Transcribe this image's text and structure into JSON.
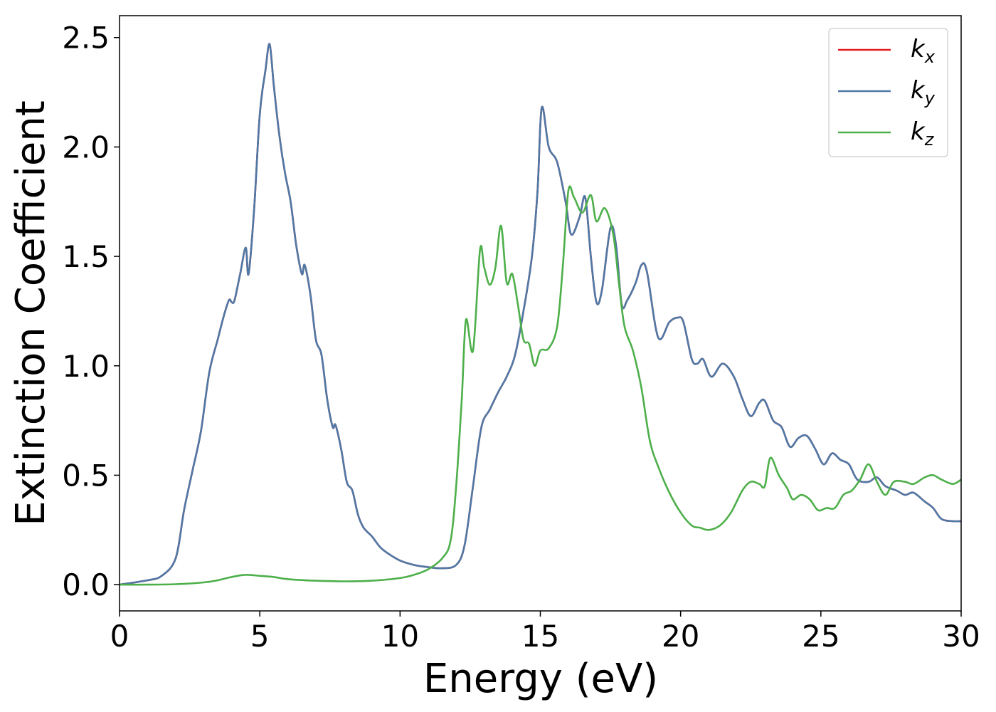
{
  "chart_data": {
    "type": "line",
    "xlabel": "Energy (eV)",
    "ylabel": "Extinction Coefficient",
    "xlim": [
      0,
      30
    ],
    "ylim": [
      -0.12,
      2.6
    ],
    "xticks": [
      0,
      5,
      10,
      15,
      20,
      25,
      30
    ],
    "xtick_labels": [
      "0",
      "5",
      "10",
      "15",
      "20",
      "25",
      "30"
    ],
    "yticks": [
      0.0,
      0.5,
      1.0,
      1.5,
      2.0,
      2.5
    ],
    "ytick_labels": [
      "0.0",
      "0.5",
      "1.0",
      "1.5",
      "2.0",
      "2.5"
    ],
    "grid": false,
    "legend_position": "top-right",
    "series": [
      {
        "name": "k",
        "subscript": "x",
        "color": "#e41a1c",
        "x": [
          0,
          1,
          1.5,
          2,
          2.3,
          2.6,
          2.9,
          3.2,
          3.5,
          3.7,
          3.9,
          4.0,
          4.1,
          4.3,
          4.5,
          4.6,
          4.8,
          5.0,
          5.2,
          5.35,
          5.5,
          5.7,
          5.9,
          6.1,
          6.3,
          6.5,
          6.6,
          6.8,
          7.0,
          7.2,
          7.4,
          7.6,
          7.7,
          7.9,
          8.1,
          8.3,
          8.5,
          8.7,
          9.0,
          9.3,
          9.6,
          10,
          10.5,
          11,
          11.5,
          12,
          12.3,
          12.6,
          12.9,
          13.2,
          13.5,
          13.8,
          14.1,
          14.4,
          14.7,
          14.9,
          15.05,
          15.3,
          15.6,
          15.9,
          16.1,
          16.4,
          16.6,
          16.8,
          17.0,
          17.2,
          17.5,
          17.7,
          17.9,
          18.1,
          18.4,
          18.6,
          18.8,
          19.2,
          19.6,
          19.9,
          20.1,
          20.4,
          20.6,
          20.8,
          21.1,
          21.5,
          21.9,
          22.2,
          22.5,
          22.8,
          23.0,
          23.3,
          23.6,
          23.9,
          24.2,
          24.5,
          24.8,
          25.1,
          25.4,
          25.7,
          26.0,
          26.3,
          26.7,
          27.0,
          27.3,
          27.7,
          28.0,
          28.3,
          28.7,
          29.0,
          29.3,
          29.7,
          30.0
        ],
        "y": [
          0.0,
          0.02,
          0.04,
          0.12,
          0.34,
          0.52,
          0.7,
          0.97,
          1.12,
          1.22,
          1.3,
          1.29,
          1.3,
          1.42,
          1.54,
          1.42,
          1.72,
          2.15,
          2.35,
          2.47,
          2.28,
          2.05,
          1.88,
          1.75,
          1.55,
          1.42,
          1.46,
          1.33,
          1.12,
          1.05,
          0.85,
          0.72,
          0.73,
          0.62,
          0.47,
          0.43,
          0.32,
          0.26,
          0.22,
          0.17,
          0.14,
          0.11,
          0.09,
          0.08,
          0.075,
          0.09,
          0.18,
          0.45,
          0.72,
          0.8,
          0.88,
          0.95,
          1.05,
          1.25,
          1.5,
          1.8,
          2.18,
          2.0,
          1.93,
          1.75,
          1.6,
          1.68,
          1.77,
          1.5,
          1.29,
          1.35,
          1.63,
          1.55,
          1.28,
          1.3,
          1.38,
          1.46,
          1.43,
          1.13,
          1.2,
          1.22,
          1.2,
          1.03,
          1.01,
          1.03,
          0.95,
          1.01,
          0.95,
          0.85,
          0.77,
          0.83,
          0.84,
          0.75,
          0.72,
          0.63,
          0.67,
          0.68,
          0.62,
          0.55,
          0.6,
          0.57,
          0.55,
          0.48,
          0.47,
          0.49,
          0.45,
          0.43,
          0.41,
          0.42,
          0.38,
          0.35,
          0.3,
          0.29,
          0.29
        ]
      },
      {
        "name": "k",
        "subscript": "y",
        "color": "#4e79a7",
        "x": [
          0,
          1,
          1.5,
          2,
          2.3,
          2.6,
          2.9,
          3.2,
          3.5,
          3.7,
          3.9,
          4.0,
          4.1,
          4.3,
          4.5,
          4.6,
          4.8,
          5.0,
          5.2,
          5.35,
          5.5,
          5.7,
          5.9,
          6.1,
          6.3,
          6.5,
          6.6,
          6.8,
          7.0,
          7.2,
          7.4,
          7.6,
          7.7,
          7.9,
          8.1,
          8.3,
          8.5,
          8.7,
          9.0,
          9.3,
          9.6,
          10,
          10.5,
          11,
          11.5,
          12,
          12.3,
          12.6,
          12.9,
          13.2,
          13.5,
          13.8,
          14.1,
          14.4,
          14.7,
          14.9,
          15.05,
          15.3,
          15.6,
          15.9,
          16.1,
          16.4,
          16.6,
          16.8,
          17.0,
          17.2,
          17.5,
          17.7,
          17.9,
          18.1,
          18.4,
          18.6,
          18.8,
          19.2,
          19.6,
          19.9,
          20.1,
          20.4,
          20.6,
          20.8,
          21.1,
          21.5,
          21.9,
          22.2,
          22.5,
          22.8,
          23.0,
          23.3,
          23.6,
          23.9,
          24.2,
          24.5,
          24.8,
          25.1,
          25.4,
          25.7,
          26.0,
          26.3,
          26.7,
          27.0,
          27.3,
          27.7,
          28.0,
          28.3,
          28.7,
          29.0,
          29.3,
          29.7,
          30.0
        ],
        "y": [
          0.0,
          0.02,
          0.04,
          0.12,
          0.34,
          0.52,
          0.7,
          0.97,
          1.12,
          1.22,
          1.3,
          1.29,
          1.3,
          1.42,
          1.54,
          1.42,
          1.72,
          2.15,
          2.35,
          2.47,
          2.28,
          2.05,
          1.88,
          1.75,
          1.55,
          1.42,
          1.46,
          1.33,
          1.12,
          1.05,
          0.85,
          0.72,
          0.73,
          0.62,
          0.47,
          0.43,
          0.32,
          0.26,
          0.22,
          0.17,
          0.14,
          0.11,
          0.09,
          0.08,
          0.075,
          0.09,
          0.18,
          0.45,
          0.72,
          0.8,
          0.88,
          0.95,
          1.05,
          1.25,
          1.5,
          1.8,
          2.18,
          2.0,
          1.93,
          1.75,
          1.6,
          1.68,
          1.77,
          1.5,
          1.29,
          1.35,
          1.63,
          1.55,
          1.28,
          1.3,
          1.38,
          1.46,
          1.43,
          1.13,
          1.2,
          1.22,
          1.2,
          1.03,
          1.01,
          1.03,
          0.95,
          1.01,
          0.95,
          0.85,
          0.77,
          0.83,
          0.84,
          0.75,
          0.72,
          0.63,
          0.67,
          0.68,
          0.62,
          0.55,
          0.6,
          0.57,
          0.55,
          0.48,
          0.47,
          0.49,
          0.45,
          0.43,
          0.41,
          0.42,
          0.38,
          0.35,
          0.3,
          0.29,
          0.29
        ]
      },
      {
        "name": "k",
        "subscript": "z",
        "color": "#4daf4a",
        "x": [
          0,
          1,
          2,
          3,
          3.5,
          4,
          4.5,
          5,
          5.5,
          6,
          7,
          8,
          9,
          10,
          10.5,
          11,
          11.5,
          11.8,
          12.0,
          12.2,
          12.35,
          12.6,
          12.85,
          13.0,
          13.2,
          13.4,
          13.6,
          13.8,
          14.0,
          14.2,
          14.4,
          14.6,
          14.8,
          15.0,
          15.3,
          15.6,
          15.8,
          16.0,
          16.2,
          16.5,
          16.8,
          17.0,
          17.3,
          17.6,
          17.8,
          18.0,
          18.3,
          18.6,
          18.9,
          19.2,
          19.6,
          20.0,
          20.4,
          20.7,
          21.0,
          21.4,
          21.8,
          22.2,
          22.5,
          22.8,
          23.0,
          23.2,
          23.5,
          23.8,
          24.0,
          24.3,
          24.6,
          24.9,
          25.2,
          25.5,
          25.8,
          26.1,
          26.4,
          26.7,
          27.0,
          27.3,
          27.6,
          28.0,
          28.3,
          28.7,
          29.0,
          29.3,
          29.7,
          30.0
        ],
        "y": [
          0.0,
          0.0,
          0.002,
          0.01,
          0.02,
          0.035,
          0.045,
          0.04,
          0.035,
          0.025,
          0.018,
          0.015,
          0.018,
          0.03,
          0.045,
          0.07,
          0.12,
          0.2,
          0.45,
          0.85,
          1.21,
          1.07,
          1.53,
          1.45,
          1.37,
          1.45,
          1.64,
          1.38,
          1.42,
          1.28,
          1.12,
          1.1,
          1.0,
          1.07,
          1.08,
          1.18,
          1.45,
          1.8,
          1.77,
          1.7,
          1.78,
          1.66,
          1.72,
          1.6,
          1.38,
          1.18,
          1.07,
          0.9,
          0.66,
          0.54,
          0.42,
          0.33,
          0.27,
          0.26,
          0.25,
          0.27,
          0.33,
          0.43,
          0.47,
          0.46,
          0.45,
          0.58,
          0.5,
          0.44,
          0.39,
          0.41,
          0.39,
          0.34,
          0.35,
          0.35,
          0.41,
          0.43,
          0.48,
          0.55,
          0.47,
          0.41,
          0.47,
          0.47,
          0.46,
          0.49,
          0.5,
          0.48,
          0.46,
          0.48
        ]
      }
    ]
  }
}
